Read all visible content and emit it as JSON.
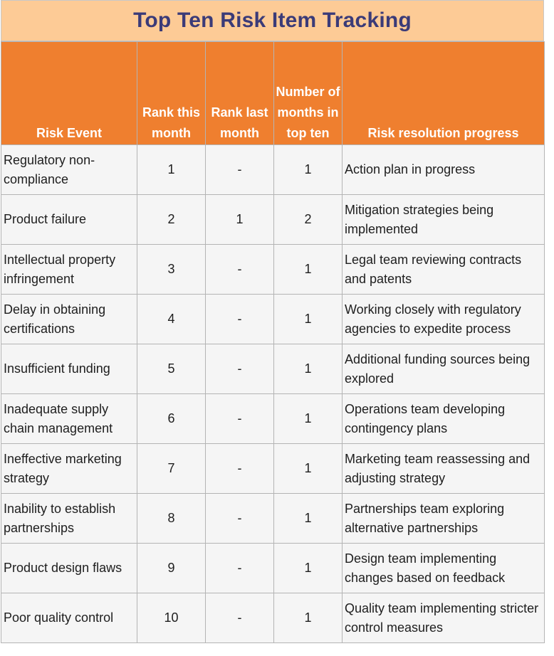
{
  "title": "Top Ten Risk Item Tracking",
  "colors": {
    "title_bg": "#fdcb96",
    "title_text": "#3b3b78",
    "header_bg": "#ef7f2f",
    "cell_bg": "#f5f5f5"
  },
  "headers": {
    "risk_event": "Risk Event",
    "rank_this": "Rank this month",
    "rank_last": "Rank last month",
    "months": "Number of months in top ten",
    "progress": "Risk resolution progress"
  },
  "rows": [
    {
      "event": "Regulatory non-compliance",
      "rank_this": "1",
      "rank_last": "-",
      "months": "1",
      "progress": "Action plan in progress"
    },
    {
      "event": "Product failure",
      "rank_this": "2",
      "rank_last": "1",
      "months": "2",
      "progress": "Mitigation strategies being implemented"
    },
    {
      "event": "Intellectual property infringement",
      "rank_this": "3",
      "rank_last": "-",
      "months": "1",
      "progress": "Legal team reviewing contracts and patents"
    },
    {
      "event": "Delay in obtaining certifications",
      "rank_this": "4",
      "rank_last": "-",
      "months": "1",
      "progress": "Working closely with regulatory agencies to expedite process"
    },
    {
      "event": "Insufficient funding",
      "rank_this": "5",
      "rank_last": "-",
      "months": "1",
      "progress": "Additional funding sources being explored"
    },
    {
      "event": "Inadequate supply chain management",
      "rank_this": "6",
      "rank_last": "-",
      "months": "1",
      "progress": "Operations team developing contingency plans"
    },
    {
      "event": "Ineffective marketing strategy",
      "rank_this": "7",
      "rank_last": "-",
      "months": "1",
      "progress": "Marketing team reassessing and adjusting strategy"
    },
    {
      "event": "Inability to establish partnerships",
      "rank_this": "8",
      "rank_last": "-",
      "months": "1",
      "progress": "Partnerships team exploring alternative partnerships"
    },
    {
      "event": "Product design flaws",
      "rank_this": "9",
      "rank_last": "-",
      "months": "1",
      "progress": "Design team implementing changes based on feedback"
    },
    {
      "event": "Poor quality control",
      "rank_this": "10",
      "rank_last": "-",
      "months": "1",
      "progress": "Quality team implementing stricter control measures"
    }
  ]
}
